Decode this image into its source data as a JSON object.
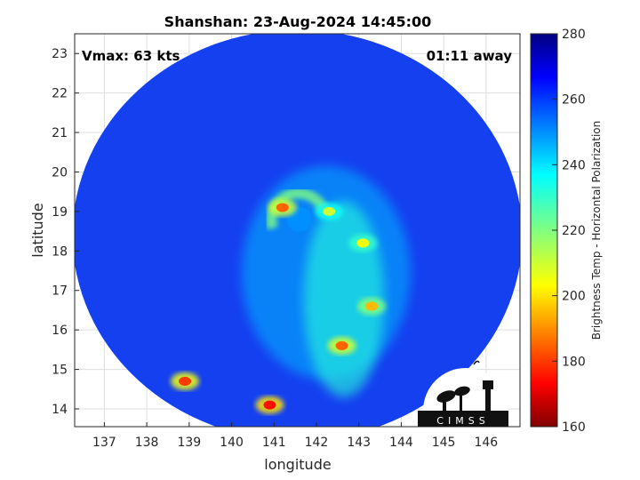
{
  "chart_data": {
    "type": "heatmap",
    "title": "Shanshan: 23-Aug-2024 14:45:00",
    "xlabel": "longitude",
    "ylabel": "latitude",
    "xlim": [
      136.3,
      146.8
    ],
    "ylim": [
      13.55,
      23.5
    ],
    "x_ticks": [
      137,
      138,
      139,
      140,
      141,
      142,
      143,
      144,
      145,
      146
    ],
    "y_ticks": [
      14,
      15,
      16,
      17,
      18,
      19,
      20,
      21,
      22,
      23
    ],
    "grid": true,
    "annotations": {
      "vmax": "Vmax: 63 kts",
      "time_away": "01:11 away"
    },
    "storm_center": {
      "lon": 141.6,
      "lat": 18.8
    },
    "swath": {
      "center_lon": 141.55,
      "center_lat": 18.4,
      "radius_lon": 5.3,
      "radius_lat": 5.2
    },
    "colorbar": {
      "label": "Brightness Temp - Horizontal Polarization",
      "min": 160,
      "max": 280,
      "ticks": [
        160,
        180,
        200,
        220,
        240,
        260,
        280
      ],
      "colormap": "jet"
    },
    "features": [
      {
        "type": "eyewall",
        "lon": 141.2,
        "lat": 19.1,
        "value": 185
      },
      {
        "type": "rainband",
        "lon": 142.3,
        "lat": 19.0,
        "value": 210
      },
      {
        "type": "rainband",
        "lon": 143.1,
        "lat": 18.2,
        "value": 205
      },
      {
        "type": "rainband",
        "lon": 143.3,
        "lat": 16.6,
        "value": 195
      },
      {
        "type": "rainband",
        "lon": 142.6,
        "lat": 15.6,
        "value": 185
      },
      {
        "type": "rainband",
        "lon": 140.9,
        "lat": 14.1,
        "value": 175
      },
      {
        "type": "rainband",
        "lon": 138.9,
        "lat": 14.7,
        "value": 180
      }
    ]
  },
  "logo": {
    "text": "CIMSS"
  }
}
